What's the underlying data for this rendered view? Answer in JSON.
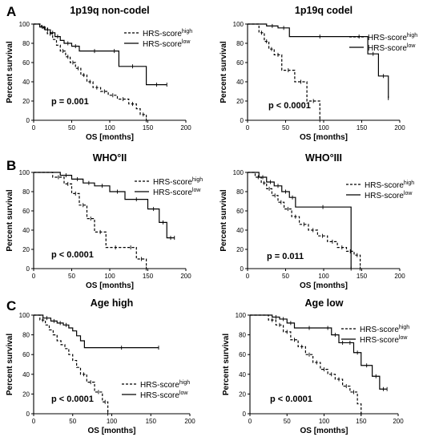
{
  "panels": [
    {
      "letter": "A",
      "letter_y": 20
    },
    {
      "letter": "B",
      "letter_y": 212
    },
    {
      "letter": "C",
      "letter_y": 387
    }
  ],
  "chart_data": [
    {
      "type": "line",
      "title": "1p19q non-codel",
      "xlabel": "OS [months]",
      "ylabel": "Percent survival",
      "xlim": [
        0,
        200
      ],
      "ylim": [
        0,
        100
      ],
      "xticks": [
        0,
        50,
        100,
        150,
        200
      ],
      "yticks": [
        0,
        20,
        40,
        60,
        80,
        100
      ],
      "annotation": "p = 0.001",
      "legend_pos": "top-right",
      "series": [
        {
          "name_base": "HRS-score",
          "name_sup": "high",
          "style": "dashed",
          "x": [
            0,
            10,
            18,
            25,
            30,
            35,
            42,
            48,
            55,
            62,
            70,
            78,
            88,
            98,
            110,
            125,
            135,
            140,
            148
          ],
          "y": [
            100,
            96,
            90,
            84,
            78,
            72,
            66,
            60,
            54,
            47,
            40,
            34,
            30,
            26,
            22,
            17,
            12,
            6,
            0
          ]
        },
        {
          "name_base": "HRS-score",
          "name_sup": "low",
          "style": "solid",
          "x": [
            0,
            8,
            15,
            22,
            28,
            35,
            40,
            50,
            60,
            100,
            112,
            148,
            175
          ],
          "y": [
            100,
            97,
            94,
            91,
            87,
            83,
            80,
            77,
            72,
            72,
            56,
            37,
            37
          ]
        }
      ]
    },
    {
      "type": "line",
      "title": "1p19q codel",
      "xlabel": "OS [months]",
      "ylabel": "Percent survival",
      "xlim": [
        0,
        200
      ],
      "ylim": [
        0,
        100
      ],
      "xticks": [
        0,
        50,
        100,
        150,
        200
      ],
      "yticks": [
        0,
        20,
        40,
        60,
        80,
        100
      ],
      "annotation": "p < 0.0001",
      "legend_pos": "top-right",
      "series": [
        {
          "name_base": "HRS-score",
          "name_sup": "high",
          "style": "dashed",
          "x": [
            0,
            15,
            22,
            28,
            35,
            45,
            62,
            78,
            95
          ],
          "y": [
            100,
            91,
            82,
            74,
            68,
            52,
            40,
            20,
            0
          ]
        },
        {
          "name_base": "HRS-score",
          "name_sup": "low",
          "style": "solid",
          "x": [
            0,
            25,
            40,
            55,
            135,
            158,
            172,
            185
          ],
          "y": [
            100,
            98,
            96,
            87,
            87,
            69,
            46,
            23
          ]
        }
      ]
    },
    {
      "type": "line",
      "title": "WHO°II",
      "xlabel": "OS [months]",
      "ylabel": "Percent survival",
      "xlim": [
        0,
        200
      ],
      "ylim": [
        0,
        100
      ],
      "xticks": [
        0,
        50,
        100,
        150,
        200
      ],
      "yticks": [
        0,
        20,
        40,
        60,
        80,
        100
      ],
      "annotation": "p < 0.0001",
      "legend_pos": "top-right",
      "series": [
        {
          "name_base": "HRS-score",
          "name_sup": "high",
          "style": "dashed",
          "x": [
            0,
            25,
            40,
            50,
            60,
            70,
            80,
            95,
            120,
            135,
            148
          ],
          "y": [
            100,
            95,
            88,
            78,
            66,
            52,
            38,
            22,
            22,
            10,
            0
          ]
        },
        {
          "name_base": "HRS-score",
          "name_sup": "low",
          "style": "solid",
          "x": [
            0,
            35,
            50,
            65,
            80,
            100,
            120,
            150,
            165,
            175,
            185
          ],
          "y": [
            100,
            97,
            93,
            89,
            86,
            80,
            72,
            62,
            48,
            32,
            32
          ]
        }
      ]
    },
    {
      "type": "line",
      "title": "WHO°III",
      "xlabel": "OS [months]",
      "ylabel": "Percent survival",
      "xlim": [
        0,
        200
      ],
      "ylim": [
        0,
        100
      ],
      "xticks": [
        0,
        50,
        100,
        150,
        200
      ],
      "yticks": [
        0,
        20,
        40,
        60,
        80,
        100
      ],
      "annotation": "p = 0.011",
      "legend_pos": "top-right",
      "series": [
        {
          "name_base": "HRS-score",
          "name_sup": "high",
          "style": "dashed",
          "x": [
            0,
            10,
            18,
            25,
            32,
            40,
            48,
            58,
            68,
            80,
            92,
            105,
            118,
            130,
            140,
            148
          ],
          "y": [
            100,
            95,
            89,
            83,
            76,
            69,
            62,
            54,
            46,
            40,
            34,
            28,
            22,
            18,
            14,
            0
          ]
        },
        {
          "name_base": "HRS-score",
          "name_sup": "low",
          "style": "solid",
          "x": [
            0,
            15,
            25,
            35,
            45,
            55,
            63,
            135,
            136
          ],
          "y": [
            100,
            95,
            90,
            86,
            80,
            74,
            64,
            64,
            0
          ]
        }
      ]
    },
    {
      "type": "line",
      "title": "Age high",
      "xlabel": "OS [months]",
      "ylabel": "Percent survival",
      "xlim": [
        0,
        200
      ],
      "ylim": [
        0,
        100
      ],
      "xticks": [
        0,
        50,
        100,
        150,
        200
      ],
      "yticks": [
        0,
        20,
        40,
        60,
        80,
        100
      ],
      "annotation": "p < 0.0001",
      "legend_pos": "bottom-right",
      "series": [
        {
          "name_base": "HRS-score",
          "name_sup": "high",
          "style": "dashed",
          "x": [
            0,
            8,
            15,
            20,
            25,
            30,
            35,
            40,
            45,
            50,
            55,
            60,
            68,
            78,
            88,
            95
          ],
          "y": [
            100,
            95,
            90,
            85,
            80,
            74,
            70,
            66,
            60,
            54,
            47,
            40,
            32,
            22,
            12,
            0
          ]
        },
        {
          "name_base": "HRS-score",
          "name_sup": "low",
          "style": "solid",
          "x": [
            0,
            12,
            22,
            30,
            38,
            45,
            50,
            55,
            60,
            65,
            160
          ],
          "y": [
            100,
            97,
            94,
            92,
            90,
            87,
            84,
            79,
            74,
            67,
            67
          ]
        }
      ]
    },
    {
      "type": "line",
      "title": "Age low",
      "xlabel": "OS [months]",
      "ylabel": "Percent survival",
      "xlim": [
        0,
        200
      ],
      "ylim": [
        0,
        100
      ],
      "xticks": [
        0,
        50,
        100,
        150,
        200
      ],
      "yticks": [
        0,
        20,
        40,
        60,
        80,
        100
      ],
      "annotation": "p < 0.0001",
      "legend_pos": "top-right",
      "series": [
        {
          "name_base": "HRS-score",
          "name_sup": "high",
          "style": "dashed",
          "x": [
            0,
            25,
            35,
            45,
            55,
            65,
            75,
            85,
            95,
            105,
            115,
            125,
            135,
            145,
            150
          ],
          "y": [
            100,
            95,
            90,
            83,
            75,
            68,
            60,
            52,
            45,
            40,
            35,
            28,
            22,
            10,
            0
          ]
        },
        {
          "name_base": "HRS-score",
          "name_sup": "low",
          "style": "solid",
          "x": [
            0,
            30,
            40,
            50,
            60,
            100,
            110,
            120,
            130,
            140,
            150,
            165,
            175,
            185
          ],
          "y": [
            100,
            98,
            96,
            92,
            87,
            87,
            80,
            72,
            72,
            62,
            49,
            38,
            25,
            25
          ]
        }
      ]
    }
  ]
}
